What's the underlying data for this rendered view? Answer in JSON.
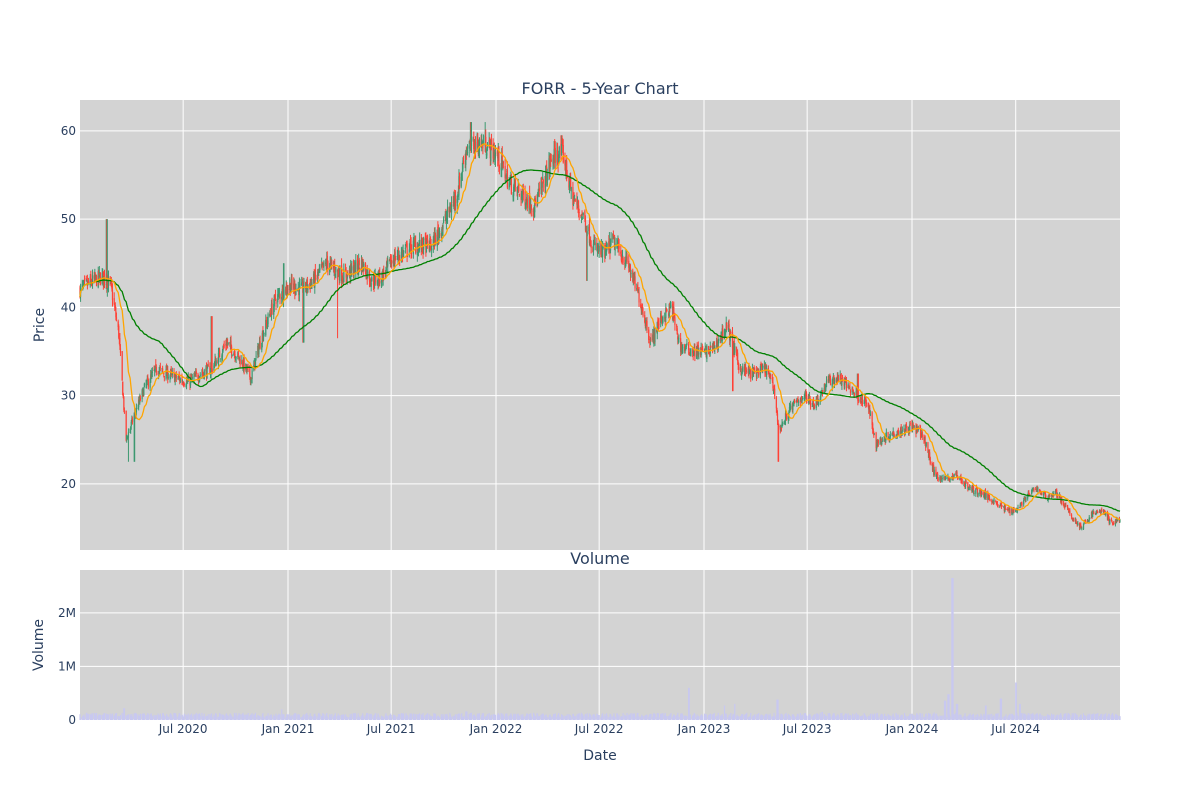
{
  "chart_data": [
    {
      "type": "candlestick",
      "title": "FORR - 5-Year Chart",
      "ylabel": "Price",
      "xlabel": "",
      "x_range": [
        "2020-01-02",
        "2024-12-31"
      ],
      "ylim": [
        12.5,
        63.5
      ],
      "y_ticks": [
        20,
        30,
        40,
        50,
        60
      ],
      "x_ticks": [
        "2020-07-01",
        "2021-01-01",
        "2021-07-01",
        "2022-01-01",
        "2022-07-01",
        "2023-01-01",
        "2023-07-01",
        "2024-01-01",
        "2024-07-01"
      ],
      "grid": true,
      "background": "#d3d3d3",
      "colors": {
        "up": "#3d9970",
        "down": "#ff4136",
        "ma_short": "#ffa500",
        "ma_long": "#008000"
      },
      "price_anchors": [
        [
          "2020-01-02",
          42.0
        ],
        [
          "2020-01-20",
          42.8
        ],
        [
          "2020-02-10",
          43.5
        ],
        [
          "2020-02-25",
          42.5
        ],
        [
          "2020-03-10",
          37.0
        ],
        [
          "2020-03-23",
          25.0
        ],
        [
          "2020-04-05",
          27.5
        ],
        [
          "2020-04-25",
          31.0
        ],
        [
          "2020-05-15",
          33.0
        ],
        [
          "2020-06-01",
          32.5
        ],
        [
          "2020-06-20",
          32.0
        ],
        [
          "2020-07-10",
          31.5
        ],
        [
          "2020-08-01",
          32.5
        ],
        [
          "2020-08-20",
          33.0
        ],
        [
          "2020-09-15",
          36.0
        ],
        [
          "2020-10-10",
          34.0
        ],
        [
          "2020-10-28",
          32.0
        ],
        [
          "2020-11-15",
          36.5
        ],
        [
          "2020-12-10",
          41.0
        ],
        [
          "2021-01-05",
          42.5
        ],
        [
          "2021-01-25",
          42.0
        ],
        [
          "2021-02-15",
          43.0
        ],
        [
          "2021-03-10",
          45.0
        ],
        [
          "2021-04-10",
          43.5
        ],
        [
          "2021-05-10",
          45.0
        ],
        [
          "2021-05-28",
          43.0
        ],
        [
          "2021-06-15",
          43.5
        ],
        [
          "2021-07-05",
          45.5
        ],
        [
          "2021-08-10",
          47.0
        ],
        [
          "2021-09-10",
          47.0
        ],
        [
          "2021-10-05",
          50.0
        ],
        [
          "2021-10-25",
          53.0
        ],
        [
          "2021-11-10",
          58.0
        ],
        [
          "2021-11-25",
          58.5
        ],
        [
          "2021-12-15",
          58.5
        ],
        [
          "2022-01-05",
          57.0
        ],
        [
          "2022-01-25",
          54.0
        ],
        [
          "2022-02-20",
          52.5
        ],
        [
          "2022-03-10",
          51.5
        ],
        [
          "2022-03-25",
          54.0
        ],
        [
          "2022-04-10",
          57.0
        ],
        [
          "2022-04-28",
          57.5
        ],
        [
          "2022-05-15",
          52.5
        ],
        [
          "2022-06-05",
          50.0
        ],
        [
          "2022-06-20",
          47.0
        ],
        [
          "2022-07-10",
          46.0
        ],
        [
          "2022-07-25",
          47.5
        ],
        [
          "2022-08-20",
          45.0
        ],
        [
          "2022-09-10",
          41.0
        ],
        [
          "2022-09-30",
          36.0
        ],
        [
          "2022-10-15",
          38.5
        ],
        [
          "2022-11-05",
          40.0
        ],
        [
          "2022-11-20",
          35.5
        ],
        [
          "2022-12-15",
          35.0
        ],
        [
          "2023-01-10",
          35.0
        ],
        [
          "2023-01-25",
          36.0
        ],
        [
          "2023-02-10",
          38.0
        ],
        [
          "2023-03-05",
          33.0
        ],
        [
          "2023-03-25",
          32.5
        ],
        [
          "2023-04-20",
          33.0
        ],
        [
          "2023-05-05",
          30.5
        ],
        [
          "2023-05-12",
          26.0
        ],
        [
          "2023-06-01",
          28.5
        ],
        [
          "2023-06-25",
          30.0
        ],
        [
          "2023-07-15",
          29.0
        ],
        [
          "2023-08-05",
          31.5
        ],
        [
          "2023-08-25",
          32.0
        ],
        [
          "2023-09-20",
          30.5
        ],
        [
          "2023-10-15",
          29.0
        ],
        [
          "2023-10-30",
          24.5
        ],
        [
          "2023-11-20",
          25.5
        ],
        [
          "2023-12-10",
          26.0
        ],
        [
          "2024-01-01",
          26.5
        ],
        [
          "2024-01-20",
          25.5
        ],
        [
          "2024-02-10",
          21.0
        ],
        [
          "2024-02-28",
          20.5
        ],
        [
          "2024-03-20",
          21.0
        ],
        [
          "2024-04-10",
          19.5
        ],
        [
          "2024-05-01",
          19.0
        ],
        [
          "2024-05-25",
          18.0
        ],
        [
          "2024-06-15",
          17.0
        ],
        [
          "2024-07-01",
          17.0
        ],
        [
          "2024-07-20",
          18.5
        ],
        [
          "2024-08-05",
          19.5
        ],
        [
          "2024-08-25",
          18.5
        ],
        [
          "2024-09-10",
          19.0
        ],
        [
          "2024-09-25",
          17.5
        ],
        [
          "2024-10-10",
          16.0
        ],
        [
          "2024-10-25",
          15.0
        ],
        [
          "2024-11-10",
          16.5
        ],
        [
          "2024-12-01",
          17.0
        ],
        [
          "2024-12-15",
          15.5
        ],
        [
          "2024-12-31",
          16.0
        ]
      ],
      "price_spikes": [
        [
          "2020-02-18",
          50.0
        ],
        [
          "2020-04-06",
          22.5
        ],
        [
          "2020-03-28",
          22.5
        ],
        [
          "2020-08-20",
          39.0
        ],
        [
          "2020-12-25",
          45.0
        ],
        [
          "2021-01-28",
          36.0
        ],
        [
          "2021-03-28",
          36.5
        ],
        [
          "2021-11-18",
          61.0
        ],
        [
          "2021-12-12",
          61.0
        ],
        [
          "2022-04-26",
          59.5
        ],
        [
          "2022-06-10",
          43.0
        ],
        [
          "2023-02-20",
          30.5
        ],
        [
          "2023-05-12",
          22.5
        ],
        [
          "2023-09-28",
          32.5
        ]
      ]
    },
    {
      "type": "bar",
      "title": "Volume",
      "ylabel": "Volume",
      "xlabel": "Date",
      "x_range": [
        "2020-01-02",
        "2024-12-31"
      ],
      "ylim": [
        0,
        2800000
      ],
      "y_ticks": [
        0,
        1000000,
        2000000
      ],
      "y_tick_labels": [
        "0",
        "1M",
        "2M"
      ],
      "x_ticks": [
        "2020-07-01",
        "2021-01-01",
        "2021-07-01",
        "2022-01-01",
        "2022-07-01",
        "2023-01-01",
        "2023-07-01",
        "2024-01-01",
        "2024-07-01"
      ],
      "x_tick_labels": [
        "Jul 2020",
        "Jan 2021",
        "Jul 2021",
        "Jan 2022",
        "Jul 2022",
        "Jan 2023",
        "Jul 2023",
        "Jan 2024",
        "Jul 2024"
      ],
      "grid": true,
      "background": "#d3d3d3",
      "bar_color": "#c8c8f0",
      "baseline_volume": 90000,
      "volume_spikes": [
        [
          "2020-03-20",
          220000
        ],
        [
          "2020-12-20",
          200000
        ],
        [
          "2021-11-10",
          160000
        ],
        [
          "2022-12-05",
          600000
        ],
        [
          "2023-02-05",
          270000
        ],
        [
          "2023-02-25",
          300000
        ],
        [
          "2023-05-10",
          380000
        ],
        [
          "2023-07-28",
          150000
        ],
        [
          "2024-02-10",
          140000
        ],
        [
          "2024-02-28",
          360000
        ],
        [
          "2024-03-05",
          480000
        ],
        [
          "2024-03-12",
          2650000
        ],
        [
          "2024-03-20",
          300000
        ],
        [
          "2024-05-10",
          270000
        ],
        [
          "2024-06-05",
          400000
        ],
        [
          "2024-07-01",
          700000
        ],
        [
          "2024-07-08",
          300000
        ]
      ]
    }
  ]
}
